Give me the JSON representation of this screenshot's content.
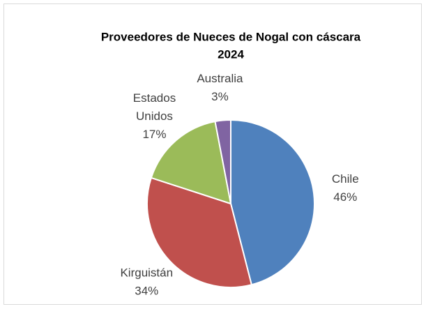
{
  "chart_data": {
    "type": "pie",
    "title_lines": [
      "Proveedores de Nueces de Nogal con cáscara",
      "2024"
    ],
    "categories": [
      "Chile",
      "Kirguistán",
      "Estados Unidos",
      "Australia"
    ],
    "values": [
      46,
      34,
      17,
      3
    ],
    "value_labels": [
      "46%",
      "34%",
      "17%",
      "3%"
    ],
    "colors": [
      "#4f81bd",
      "#c0504d",
      "#9bbb59",
      "#8064a2"
    ]
  }
}
